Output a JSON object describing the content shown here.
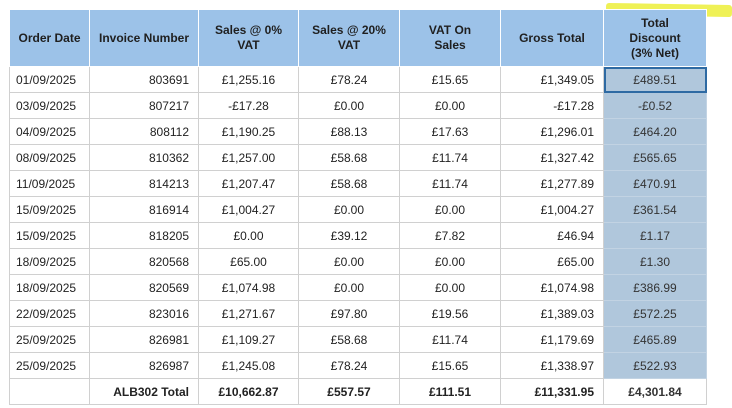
{
  "columns": [
    "Order Date",
    "Invoice Number",
    "Sales @ 0% VAT",
    "Sales @ 20% VAT",
    "VAT On Sales",
    "Gross Total",
    "Total Discount (3% Net)"
  ],
  "rows": [
    [
      "01/09/2025",
      "803691",
      "£1,255.16",
      "£78.24",
      "£15.65",
      "£1,349.05",
      "£489.51"
    ],
    [
      "03/09/2025",
      "807217",
      "-£17.28",
      "£0.00",
      "£0.00",
      "-£17.28",
      "-£0.52"
    ],
    [
      "04/09/2025",
      "808112",
      "£1,190.25",
      "£88.13",
      "£17.63",
      "£1,296.01",
      "£464.20"
    ],
    [
      "08/09/2025",
      "810362",
      "£1,257.00",
      "£58.68",
      "£11.74",
      "£1,327.42",
      "£565.65"
    ],
    [
      "11/09/2025",
      "814213",
      "£1,207.47",
      "£58.68",
      "£11.74",
      "£1,277.89",
      "£470.91"
    ],
    [
      "15/09/2025",
      "816914",
      "£1,004.27",
      "£0.00",
      "£0.00",
      "£1,004.27",
      "£361.54"
    ],
    [
      "15/09/2025",
      "818205",
      "£0.00",
      "£39.12",
      "£7.82",
      "£46.94",
      "£1.17"
    ],
    [
      "18/09/2025",
      "820568",
      "£65.00",
      "£0.00",
      "£0.00",
      "£65.00",
      "£1.30"
    ],
    [
      "18/09/2025",
      "820569",
      "£1,074.98",
      "£0.00",
      "£0.00",
      "£1,074.98",
      "£386.99"
    ],
    [
      "22/09/2025",
      "823016",
      "£1,271.67",
      "£97.80",
      "£19.56",
      "£1,389.03",
      "£572.25"
    ],
    [
      "25/09/2025",
      "826981",
      "£1,109.27",
      "£58.68",
      "£11.74",
      "£1,179.69",
      "£465.89"
    ],
    [
      "25/09/2025",
      "826987",
      "£1,245.08",
      "£78.24",
      "£15.65",
      "£1,338.97",
      "£522.93"
    ]
  ],
  "total_row": [
    "",
    "ALB302 Total",
    "£10,662.87",
    "£557.57",
    "£111.51",
    "£11,331.95",
    "£4,301.84"
  ],
  "colors": {
    "header_bg": "#9cc2e8",
    "discount_bg": "#b0c7dc",
    "highlight": "#ecef38",
    "selection": "#2e6aa3"
  }
}
